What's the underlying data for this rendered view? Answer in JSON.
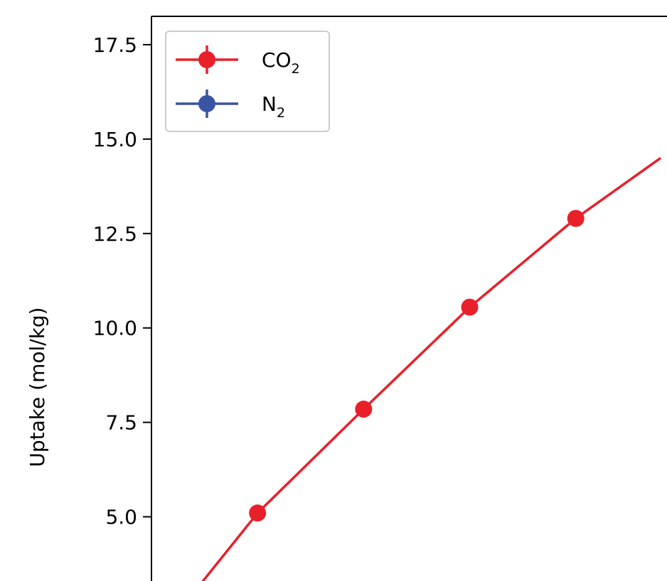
{
  "chart_data": {
    "type": "line",
    "ylabel": "Uptake (mol/kg)",
    "ylim": [
      3.3,
      18.25
    ],
    "yticks": [
      "5.0",
      "7.5",
      "10.0",
      "12.5",
      "15.0",
      "17.5"
    ],
    "grid": false,
    "legend": {
      "placement": "top-left",
      "entries": [
        {
          "base": "CO",
          "sub": "2",
          "color": "#e8202a"
        },
        {
          "base": "N",
          "sub": "2",
          "color": "#3a54a4"
        }
      ]
    },
    "series": [
      {
        "legend_index": 0,
        "color": "#e8202a",
        "marker": "circle",
        "points": [
          {
            "x": 0.2,
            "y": 3.0,
            "marker": false
          },
          {
            "x": 0.5,
            "y": 5.1,
            "marker": true
          },
          {
            "x": 1.0,
            "y": 7.85,
            "marker": true
          },
          {
            "x": 1.5,
            "y": 10.55,
            "marker": true
          },
          {
            "x": 2.0,
            "y": 12.9,
            "marker": true
          },
          {
            "x": 2.4,
            "y": 14.5,
            "marker": false
          }
        ]
      }
    ]
  }
}
